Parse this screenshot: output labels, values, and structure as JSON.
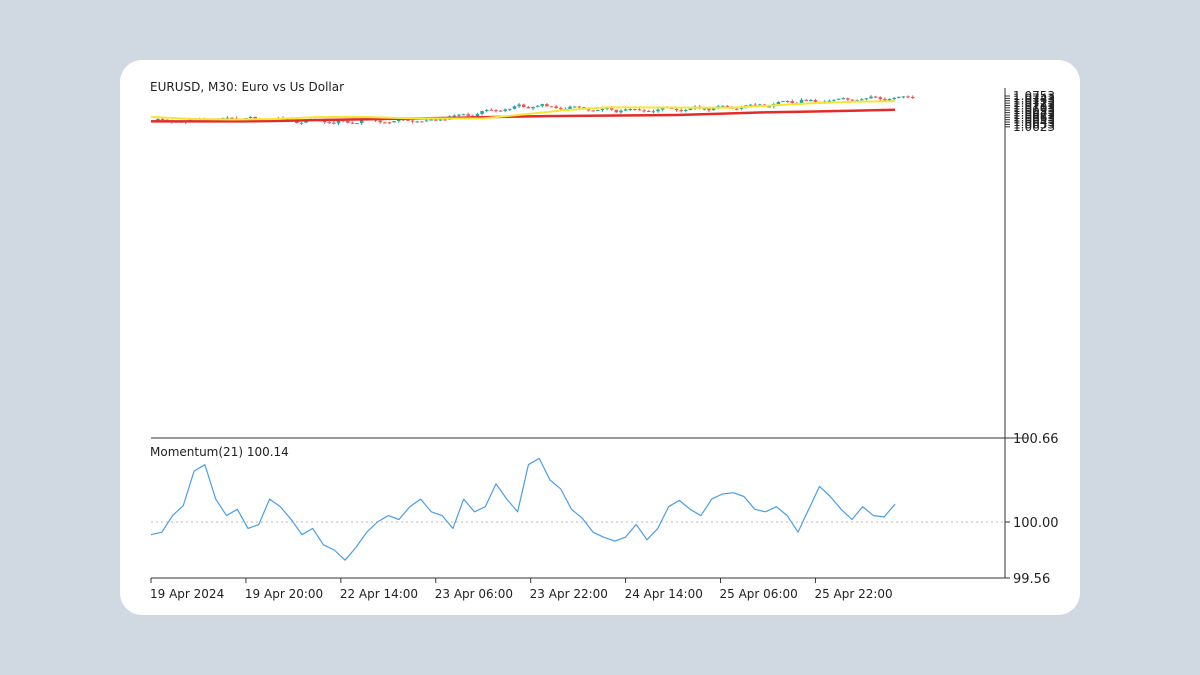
{
  "chart_data": {
    "type": "candlestick",
    "title": "EURUSD, M30: Euro vs Us Dollar",
    "price_panel": {
      "y_ticks": [
        "1.0753",
        "1.0743",
        "1.0733",
        "1.0723",
        "1.0713",
        "1.0703",
        "1.0693",
        "1.0683",
        "1.0673",
        "1.0663",
        "1.0653",
        "1.0643",
        "1.0633",
        "1.0623"
      ],
      "up_color": "#26a69a",
      "down_color": "#ef5350",
      "key_closes": [
        {
          "label": "19 Apr 2024",
          "close": 1.0647
        },
        {
          "label": "19 Apr 20:00",
          "close": 1.0657
        },
        {
          "label": "22 Apr 14:00",
          "close": 1.0643
        },
        {
          "label": "23 Apr 06:00",
          "close": 1.0651
        },
        {
          "label": "23 Apr 22:00",
          "close": 1.0712
        },
        {
          "label": "24 Apr 14:00",
          "close": 1.0692
        },
        {
          "label": "25 Apr 06:00",
          "close": 1.0699
        },
        {
          "label": "25 Apr 22:00",
          "close": 1.0729
        },
        {
          "label": "last",
          "close": 1.075
        }
      ],
      "ma_fast": {
        "color": "#f5e636",
        "values": [
          1.0665,
          1.0656,
          1.0654,
          1.0656,
          1.0664,
          1.0665,
          1.066,
          1.0658,
          1.0658,
          1.0675,
          1.0693,
          1.0705,
          1.0705,
          1.0704,
          1.0703,
          1.0713,
          1.0722,
          1.0729,
          1.0731
        ]
      },
      "ma_slow": {
        "color": "#e32b2b",
        "values": [
          1.0646,
          1.0646,
          1.0646,
          1.0648,
          1.0652,
          1.0655,
          1.0658,
          1.0661,
          1.0665,
          1.0668,
          1.067,
          1.0671,
          1.0673,
          1.0678,
          1.0684,
          1.0687,
          1.0691,
          1.0695
        ]
      }
    },
    "momentum_panel": {
      "label": "Momentum(21) 100.14",
      "y_ticks": [
        "100.66",
        "100.00",
        "99.56"
      ],
      "reference": 100.0,
      "line_color": "#4a9de8",
      "values": [
        99.9,
        99.92,
        100.05,
        100.13,
        100.4,
        100.45,
        100.18,
        100.05,
        100.1,
        99.95,
        99.98,
        100.18,
        100.12,
        100.02,
        99.9,
        99.95,
        99.82,
        99.78,
        99.7,
        99.8,
        99.92,
        100.0,
        100.05,
        100.02,
        100.12,
        100.18,
        100.08,
        100.05,
        99.95,
        100.18,
        100.08,
        100.12,
        100.3,
        100.18,
        100.08,
        100.45,
        100.5,
        100.33,
        100.26,
        100.1,
        100.03,
        99.92,
        99.88,
        99.85,
        99.88,
        99.98,
        99.86,
        99.95,
        100.12,
        100.17,
        100.1,
        100.05,
        100.18,
        100.22,
        100.23,
        100.2,
        100.1,
        100.08,
        100.12,
        100.05,
        99.92,
        100.1,
        100.28,
        100.2,
        100.1,
        100.02,
        100.12,
        100.05,
        100.04,
        100.14
      ]
    },
    "x_labels": [
      "19 Apr 2024",
      "19 Apr 20:00",
      "22 Apr 14:00",
      "23 Apr 06:00",
      "23 Apr 22:00",
      "24 Apr 14:00",
      "25 Apr 06:00",
      "25 Apr 22:00"
    ],
    "grid": false
  }
}
